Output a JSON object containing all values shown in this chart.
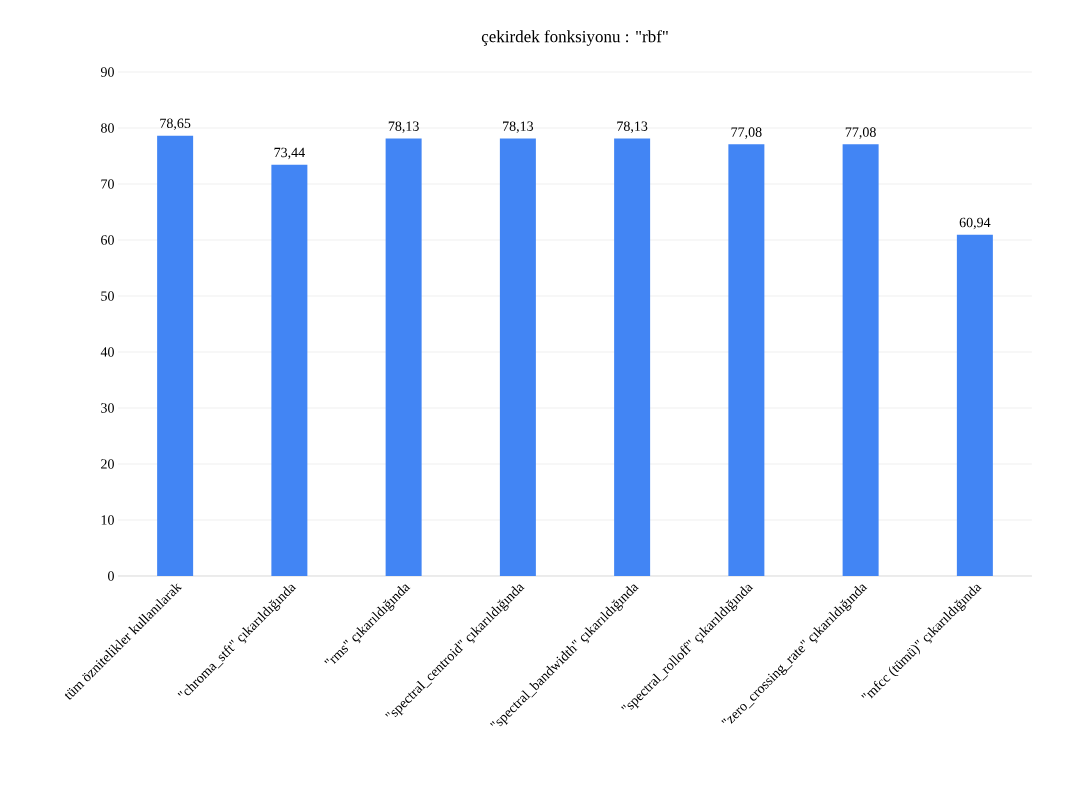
{
  "chart_data": {
    "type": "bar",
    "title": "çekirdek fonksiyonu : \"rbf\"",
    "categories": [
      "tüm öznitelikler kullanılarak",
      "\"chroma_stft\" çıkarıldığında",
      "\"rms\" çıkarıldığında",
      "\"spectral_centroid\" çıkarıldığında",
      "\"spectral_bandwidth\" çıkarıldığında",
      "\"spectral_rolloff\" çıkarıldığında",
      "\"zero_crossing_rate\" çıkarıldığında",
      "\"mfcc (tümü)\" çıkarıldığında"
    ],
    "values": [
      78.65,
      73.44,
      78.13,
      78.13,
      78.13,
      77.08,
      77.08,
      60.94
    ],
    "value_labels": [
      "78,65",
      "73,44",
      "78,13",
      "78,13",
      "78,13",
      "77,08",
      "77,08",
      "60,94"
    ],
    "color": "#4285f4",
    "ylim": [
      0,
      90
    ],
    "yticks": [
      0,
      10,
      20,
      30,
      40,
      50,
      60,
      70,
      80,
      90
    ],
    "grid": "y"
  }
}
